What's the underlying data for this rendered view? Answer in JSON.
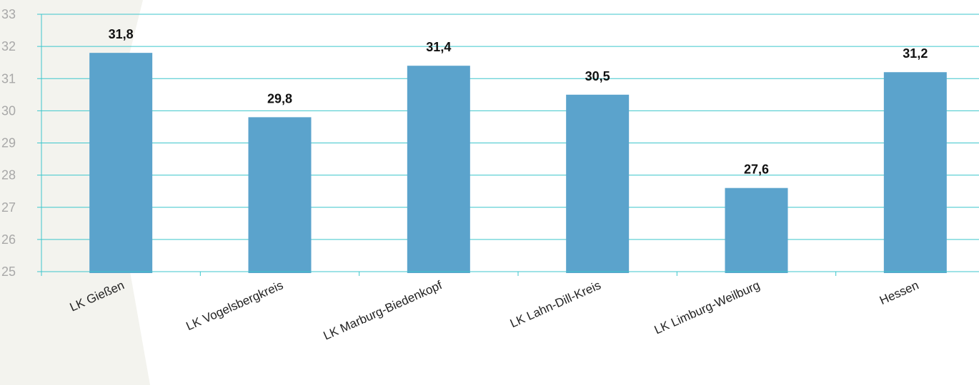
{
  "chart_data": {
    "type": "bar",
    "title": "",
    "xlabel": "",
    "ylabel": "",
    "categories": [
      "LK Gießen",
      "LK Vogelsbergkreis",
      "LK Marburg-Biedenkopf",
      "LK Lahn-Dill-Kreis",
      "LK  Limburg-Weilburg",
      "Hessen"
    ],
    "values": [
      31.8,
      29.8,
      31.4,
      30.5,
      27.6,
      31.2
    ],
    "value_labels": [
      "31,8",
      "29,8",
      "31,4",
      "30,5",
      "27,6",
      "31,2"
    ],
    "ylim": [
      25,
      33
    ],
    "yticks": [
      25,
      26,
      27,
      28,
      29,
      30,
      31,
      32,
      33
    ],
    "grid": true,
    "legend": "none",
    "colors": {
      "bar": "#5ba3cc",
      "grid": "#3cc6cc",
      "y_tick_text": "#a8a8a8",
      "data_label_text": "#111111"
    }
  }
}
